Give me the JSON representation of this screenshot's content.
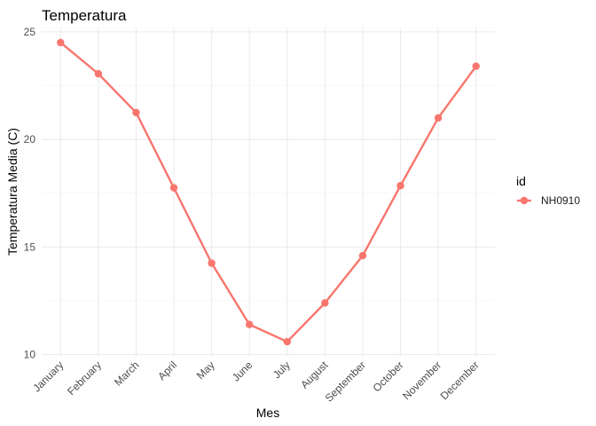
{
  "chart_data": {
    "type": "line",
    "title": "Temperatura",
    "xlabel": "Mes",
    "ylabel": "Temperatura Media (C)",
    "categories": [
      "January",
      "February",
      "March",
      "April",
      "May",
      "June",
      "July",
      "August",
      "September",
      "October",
      "November",
      "December"
    ],
    "series": [
      {
        "name": "NH0910",
        "color": "#F8766D",
        "values": [
          24.5,
          23.05,
          21.25,
          17.75,
          14.25,
          11.4,
          10.6,
          12.4,
          14.6,
          17.85,
          21.0,
          23.4
        ]
      }
    ],
    "yticks": [
      10,
      15,
      20,
      25
    ],
    "ylim": [
      9.9,
      25.2
    ],
    "grid": true,
    "legend": {
      "title": "id",
      "position": "right"
    }
  }
}
